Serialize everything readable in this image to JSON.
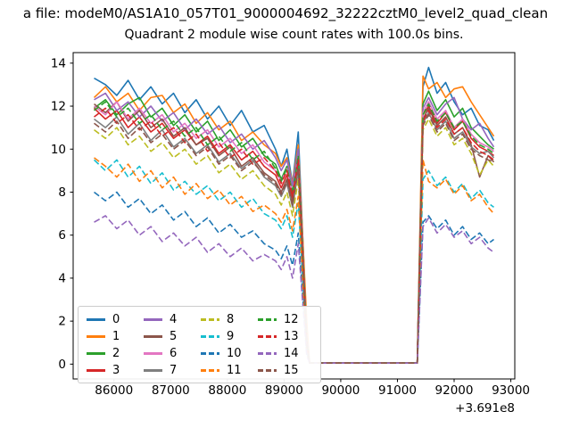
{
  "figure": {
    "title_line": "a file: modeM0/AS1A10_057T01_9000004692_32222cztM0_level2_quad_clean"
  },
  "chart_data": {
    "type": "line",
    "title": "Quadrant 2 module wise count rates with 100.0s bins.",
    "xlabel": "",
    "ylabel": "",
    "xlim": [
      85280,
      93070
    ],
    "ylim": [
      -0.69,
      14.49
    ],
    "grid": false,
    "legend_position": "lower-left",
    "x_offset_text": "+3.691e8",
    "xticks": [
      86000,
      87000,
      88000,
      89000,
      90000,
      91000,
      92000,
      93000
    ],
    "xtick_labels": [
      "86000",
      "87000",
      "88000",
      "89000",
      "90000",
      "91000",
      "92000",
      "93000"
    ],
    "yticks": [
      0,
      2,
      4,
      6,
      8,
      10,
      12,
      14
    ],
    "ytick_labels": [
      "0",
      "2",
      "4",
      "6",
      "8",
      "10",
      "12",
      "14"
    ],
    "x": [
      85650,
      85850,
      86050,
      86250,
      86450,
      86650,
      86850,
      87050,
      87250,
      87450,
      87650,
      87850,
      88050,
      88250,
      88450,
      88650,
      88850,
      88950,
      89050,
      89150,
      89250,
      89400,
      89450,
      91350,
      91450,
      91550,
      91700,
      91850,
      92000,
      92150,
      92300,
      92450,
      92600,
      92700
    ],
    "series": [
      {
        "name": "0",
        "color": "#1f77b4",
        "dash": false,
        "y": [
          13.3,
          13.0,
          12.5,
          13.2,
          12.3,
          12.9,
          12.1,
          12.6,
          11.7,
          12.3,
          11.4,
          12.0,
          11.1,
          11.8,
          10.8,
          11.1,
          10.0,
          9.2,
          10.0,
          8.4,
          10.8,
          1.5,
          0.05,
          0.05,
          12.9,
          13.8,
          12.6,
          13.1,
          12.2,
          11.6,
          11.9,
          11.1,
          10.9,
          10.4
        ]
      },
      {
        "name": "1",
        "color": "#ff7f0e",
        "dash": false,
        "y": [
          12.4,
          12.9,
          12.2,
          12.6,
          11.8,
          12.4,
          12.5,
          11.7,
          12.1,
          11.2,
          11.7,
          10.9,
          11.3,
          10.4,
          10.8,
          10.2,
          9.8,
          9.2,
          9.6,
          8.4,
          10.2,
          2.0,
          0.05,
          0.05,
          13.4,
          12.8,
          13.1,
          12.4,
          12.8,
          12.9,
          12.2,
          11.6,
          11.0,
          10.6
        ]
      },
      {
        "name": "2",
        "color": "#2ca02c",
        "dash": false,
        "y": [
          11.9,
          12.3,
          11.6,
          12.1,
          12.4,
          11.5,
          11.9,
          11.1,
          11.6,
          10.8,
          11.3,
          10.4,
          10.9,
          10.1,
          10.5,
          9.7,
          9.3,
          8.6,
          9.2,
          8.0,
          9.8,
          1.2,
          0.05,
          0.05,
          12.1,
          12.7,
          11.8,
          12.3,
          11.5,
          11.9,
          11.0,
          10.6,
          10.2,
          10.0
        ]
      },
      {
        "name": "3",
        "color": "#d62728",
        "dash": false,
        "y": [
          11.9,
          11.4,
          11.8,
          11.0,
          11.5,
          10.8,
          11.2,
          10.5,
          10.9,
          10.2,
          10.6,
          9.8,
          10.2,
          9.5,
          9.9,
          9.2,
          8.8,
          8.2,
          8.8,
          7.7,
          9.4,
          1.0,
          0.05,
          0.05,
          11.6,
          12.0,
          11.2,
          11.7,
          10.9,
          11.3,
          10.5,
          10.1,
          9.9,
          9.7
        ]
      },
      {
        "name": "4",
        "color": "#9467bd",
        "dash": false,
        "y": [
          12.3,
          12.6,
          11.8,
          12.2,
          11.5,
          12.0,
          11.3,
          11.7,
          10.9,
          11.4,
          10.7,
          11.1,
          10.3,
          10.7,
          10.0,
          10.4,
          9.6,
          9.0,
          9.5,
          8.3,
          10.0,
          1.3,
          0.05,
          0.05,
          11.9,
          12.4,
          11.6,
          12.1,
          12.4,
          11.4,
          10.9,
          11.2,
          10.5,
          10.1
        ]
      },
      {
        "name": "5",
        "color": "#8c564b",
        "dash": false,
        "y": [
          12.1,
          11.7,
          12.2,
          11.3,
          11.8,
          11.0,
          11.4,
          10.6,
          11.0,
          10.2,
          10.5,
          9.7,
          10.1,
          9.2,
          9.6,
          8.9,
          8.5,
          8.0,
          8.6,
          7.5,
          9.2,
          0.8,
          0.05,
          0.05,
          11.4,
          11.9,
          11.1,
          11.5,
          10.7,
          11.0,
          10.2,
          8.7,
          9.7,
          9.4
        ]
      },
      {
        "name": "6",
        "color": "#e377c2",
        "dash": false,
        "y": [
          12.0,
          11.6,
          12.2,
          11.4,
          11.9,
          11.2,
          11.6,
          10.8,
          11.2,
          10.5,
          10.9,
          10.1,
          10.5,
          9.8,
          10.2,
          9.4,
          9.0,
          8.5,
          9.1,
          7.9,
          9.6,
          1.0,
          0.05,
          0.05,
          11.7,
          12.2,
          11.4,
          11.8,
          11.0,
          11.4,
          10.7,
          10.3,
          10.1,
          9.9
        ]
      },
      {
        "name": "7",
        "color": "#7f7f7f",
        "dash": false,
        "y": [
          11.4,
          11.0,
          11.5,
          10.7,
          11.2,
          10.4,
          10.9,
          10.1,
          10.5,
          9.8,
          10.2,
          9.4,
          9.8,
          9.1,
          9.5,
          8.7,
          8.3,
          7.8,
          8.4,
          7.3,
          9.0,
          0.9,
          0.05,
          0.05,
          11.2,
          11.7,
          10.9,
          11.3,
          10.5,
          10.8,
          10.1,
          9.8,
          9.9,
          9.6
        ]
      },
      {
        "name": "8",
        "color": "#bcbd22",
        "dash": true,
        "y": [
          10.9,
          10.5,
          11.0,
          10.2,
          10.6,
          9.9,
          10.3,
          9.6,
          10.0,
          9.3,
          9.7,
          8.9,
          9.3,
          8.6,
          9.0,
          8.3,
          7.9,
          7.4,
          8.0,
          6.9,
          8.6,
          0.7,
          0.05,
          0.05,
          10.9,
          11.4,
          10.6,
          11.0,
          10.2,
          10.5,
          9.8,
          8.8,
          9.5,
          9.2
        ]
      },
      {
        "name": "9",
        "color": "#17becf",
        "dash": true,
        "y": [
          9.5,
          9.0,
          9.5,
          8.7,
          9.2,
          8.4,
          8.9,
          8.1,
          8.5,
          7.9,
          8.3,
          7.6,
          8.0,
          7.3,
          7.7,
          7.0,
          6.7,
          6.3,
          6.9,
          5.9,
          7.5,
          0.6,
          0.05,
          0.05,
          8.6,
          9.0,
          8.3,
          8.7,
          8.0,
          8.4,
          7.7,
          8.1,
          7.5,
          7.3
        ]
      },
      {
        "name": "10",
        "color": "#1f77b4",
        "dash": true,
        "y": [
          8.0,
          7.6,
          8.0,
          7.3,
          7.7,
          7.0,
          7.4,
          6.7,
          7.1,
          6.4,
          6.8,
          6.1,
          6.5,
          5.9,
          6.2,
          5.6,
          5.3,
          4.9,
          5.5,
          4.6,
          6.1,
          0.5,
          0.05,
          0.05,
          6.6,
          6.9,
          6.3,
          6.7,
          6.0,
          6.4,
          5.8,
          6.1,
          5.6,
          5.8
        ]
      },
      {
        "name": "11",
        "color": "#ff7f0e",
        "dash": true,
        "y": [
          9.6,
          9.2,
          8.7,
          9.3,
          8.5,
          9.0,
          8.2,
          8.7,
          7.9,
          8.4,
          7.7,
          8.1,
          7.4,
          7.8,
          7.1,
          7.4,
          7.0,
          6.6,
          7.2,
          6.2,
          7.8,
          0.6,
          0.05,
          0.05,
          9.5,
          8.5,
          8.2,
          8.6,
          7.9,
          8.3,
          7.6,
          7.9,
          7.3,
          7.0
        ]
      },
      {
        "name": "12",
        "color": "#2ca02c",
        "dash": true,
        "y": [
          11.8,
          12.2,
          11.5,
          11.9,
          11.2,
          11.6,
          10.9,
          11.3,
          10.6,
          11.0,
          10.2,
          10.6,
          9.9,
          10.3,
          9.5,
          9.9,
          9.1,
          8.5,
          9.1,
          7.9,
          9.7,
          1.1,
          0.05,
          0.05,
          11.6,
          12.1,
          11.3,
          11.7,
          11.0,
          11.3,
          10.6,
          10.2,
          10.0,
          9.8
        ]
      },
      {
        "name": "13",
        "color": "#d62728",
        "dash": true,
        "y": [
          11.5,
          11.9,
          11.2,
          11.6,
          10.9,
          11.3,
          10.6,
          11.0,
          10.3,
          10.7,
          9.9,
          10.3,
          9.6,
          10.0,
          9.3,
          9.6,
          9.0,
          8.4,
          9.0,
          7.8,
          9.5,
          1.0,
          0.05,
          0.05,
          11.3,
          11.8,
          11.0,
          11.4,
          10.7,
          11.0,
          10.3,
          9.9,
          9.7,
          9.5
        ]
      },
      {
        "name": "14",
        "color": "#9467bd",
        "dash": true,
        "y": [
          6.6,
          6.9,
          6.3,
          6.7,
          6.0,
          6.4,
          5.7,
          6.1,
          5.5,
          5.9,
          5.2,
          5.6,
          5.0,
          5.4,
          4.8,
          5.1,
          4.8,
          4.4,
          5.0,
          4.0,
          5.6,
          0.4,
          0.05,
          0.05,
          6.4,
          6.8,
          6.1,
          6.5,
          5.9,
          6.2,
          5.6,
          5.9,
          5.4,
          5.2
        ]
      },
      {
        "name": "15",
        "color": "#8c564b",
        "dash": true,
        "y": [
          11.2,
          10.8,
          11.3,
          10.5,
          11.0,
          10.3,
          10.7,
          10.0,
          10.4,
          9.7,
          10.1,
          9.3,
          9.7,
          9.0,
          9.4,
          8.8,
          8.4,
          7.9,
          8.5,
          7.4,
          9.1,
          0.9,
          0.05,
          0.05,
          11.1,
          11.6,
          10.8,
          11.2,
          10.4,
          10.7,
          10.0,
          9.7,
          9.5,
          9.4
        ]
      }
    ]
  },
  "legend": {
    "labels": [
      "0",
      "1",
      "2",
      "3",
      "4",
      "5",
      "6",
      "7",
      "8",
      "9",
      "10",
      "11",
      "12",
      "13",
      "14",
      "15"
    ]
  }
}
